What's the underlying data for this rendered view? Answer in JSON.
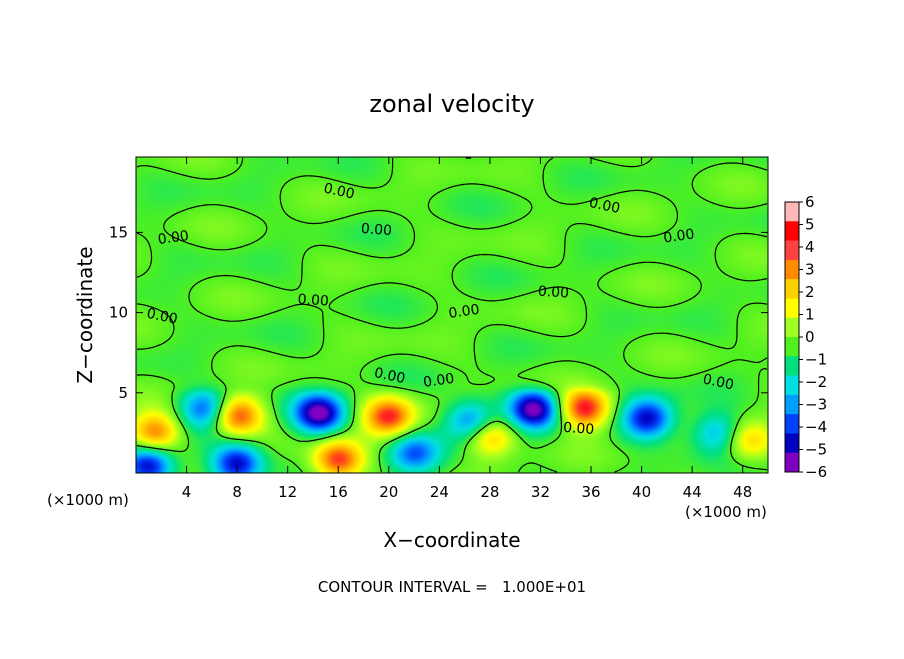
{
  "chart_data": {
    "type": "heatmap",
    "title": "zonal velocity",
    "xlabel": "X−coordinate",
    "ylabel": "Z−coordinate",
    "x_unit": "(×1000 m)",
    "y_unit": "(×1000 m)",
    "xlim": [
      0,
      50
    ],
    "ylim": [
      0,
      19.7
    ],
    "x_ticks": [
      4,
      8,
      12,
      16,
      20,
      24,
      28,
      32,
      36,
      40,
      44,
      48
    ],
    "y_ticks": [
      5,
      10,
      15
    ],
    "colorbar": {
      "range": [
        -6,
        6
      ],
      "ticks": [
        6,
        5,
        4,
        3,
        2,
        1,
        0,
        -1,
        -2,
        -3,
        -4,
        -5,
        -6
      ],
      "tick_labels": [
        "6",
        "5",
        "4",
        "3",
        "2",
        "1",
        "0",
        "−1",
        "−2",
        "−3",
        "−4",
        "−5",
        "−6"
      ],
      "colors": [
        "#ffb8b8",
        "#ff0000",
        "#ff4040",
        "#ff8c00",
        "#ffd000",
        "#ffff00",
        "#a0ff20",
        "#50f020",
        "#00e080",
        "#00e0e0",
        "#00a0ff",
        "#0040ff",
        "#0000c0",
        "#8000c0"
      ]
    },
    "contour_label": "0.00",
    "contour_interval_text": "CONTOUR INTERVAL =   1.000E+01",
    "contour_label_positions": [
      {
        "x": 16,
        "z": 17.3
      },
      {
        "x": 3,
        "z": 14.4
      },
      {
        "x": 19,
        "z": 14.9
      },
      {
        "x": 37,
        "z": 16.4
      },
      {
        "x": 43,
        "z": 14.5
      },
      {
        "x": 14,
        "z": 10.5
      },
      {
        "x": 2,
        "z": 9.5
      },
      {
        "x": 26,
        "z": 9.8
      },
      {
        "x": 33,
        "z": 11.0
      },
      {
        "x": 20,
        "z": 5.8
      },
      {
        "x": 24,
        "z": 5.5
      },
      {
        "x": 35,
        "z": 2.5
      },
      {
        "x": 46,
        "z": 5.4
      }
    ],
    "features": [
      {
        "x": 1.5,
        "z": 2.5,
        "value": 4.5
      },
      {
        "x": 5.5,
        "z": 4.0,
        "value": -4.0
      },
      {
        "x": 8.0,
        "z": 3.6,
        "value": 5.0
      },
      {
        "x": 14.5,
        "z": 3.7,
        "value": -6.0
      },
      {
        "x": 20.0,
        "z": 3.5,
        "value": 5.0
      },
      {
        "x": 26.5,
        "z": 3.2,
        "value": -4.0
      },
      {
        "x": 28.0,
        "z": 2.3,
        "value": 3.5
      },
      {
        "x": 31.5,
        "z": 4.0,
        "value": -6.0
      },
      {
        "x": 35.5,
        "z": 4.0,
        "value": 5.5
      },
      {
        "x": 40.5,
        "z": 3.4,
        "value": -5.0
      },
      {
        "x": 46.0,
        "z": 2.5,
        "value": -3.0
      },
      {
        "x": 48.5,
        "z": 2.0,
        "value": 3.0
      },
      {
        "x": 16.0,
        "z": 0.8,
        "value": 5.0
      },
      {
        "x": 8.0,
        "z": 0.6,
        "value": -5.0
      },
      {
        "x": 1.0,
        "z": 0.5,
        "value": -5.5
      },
      {
        "x": 22.0,
        "z": 1.2,
        "value": -3.5
      }
    ]
  }
}
